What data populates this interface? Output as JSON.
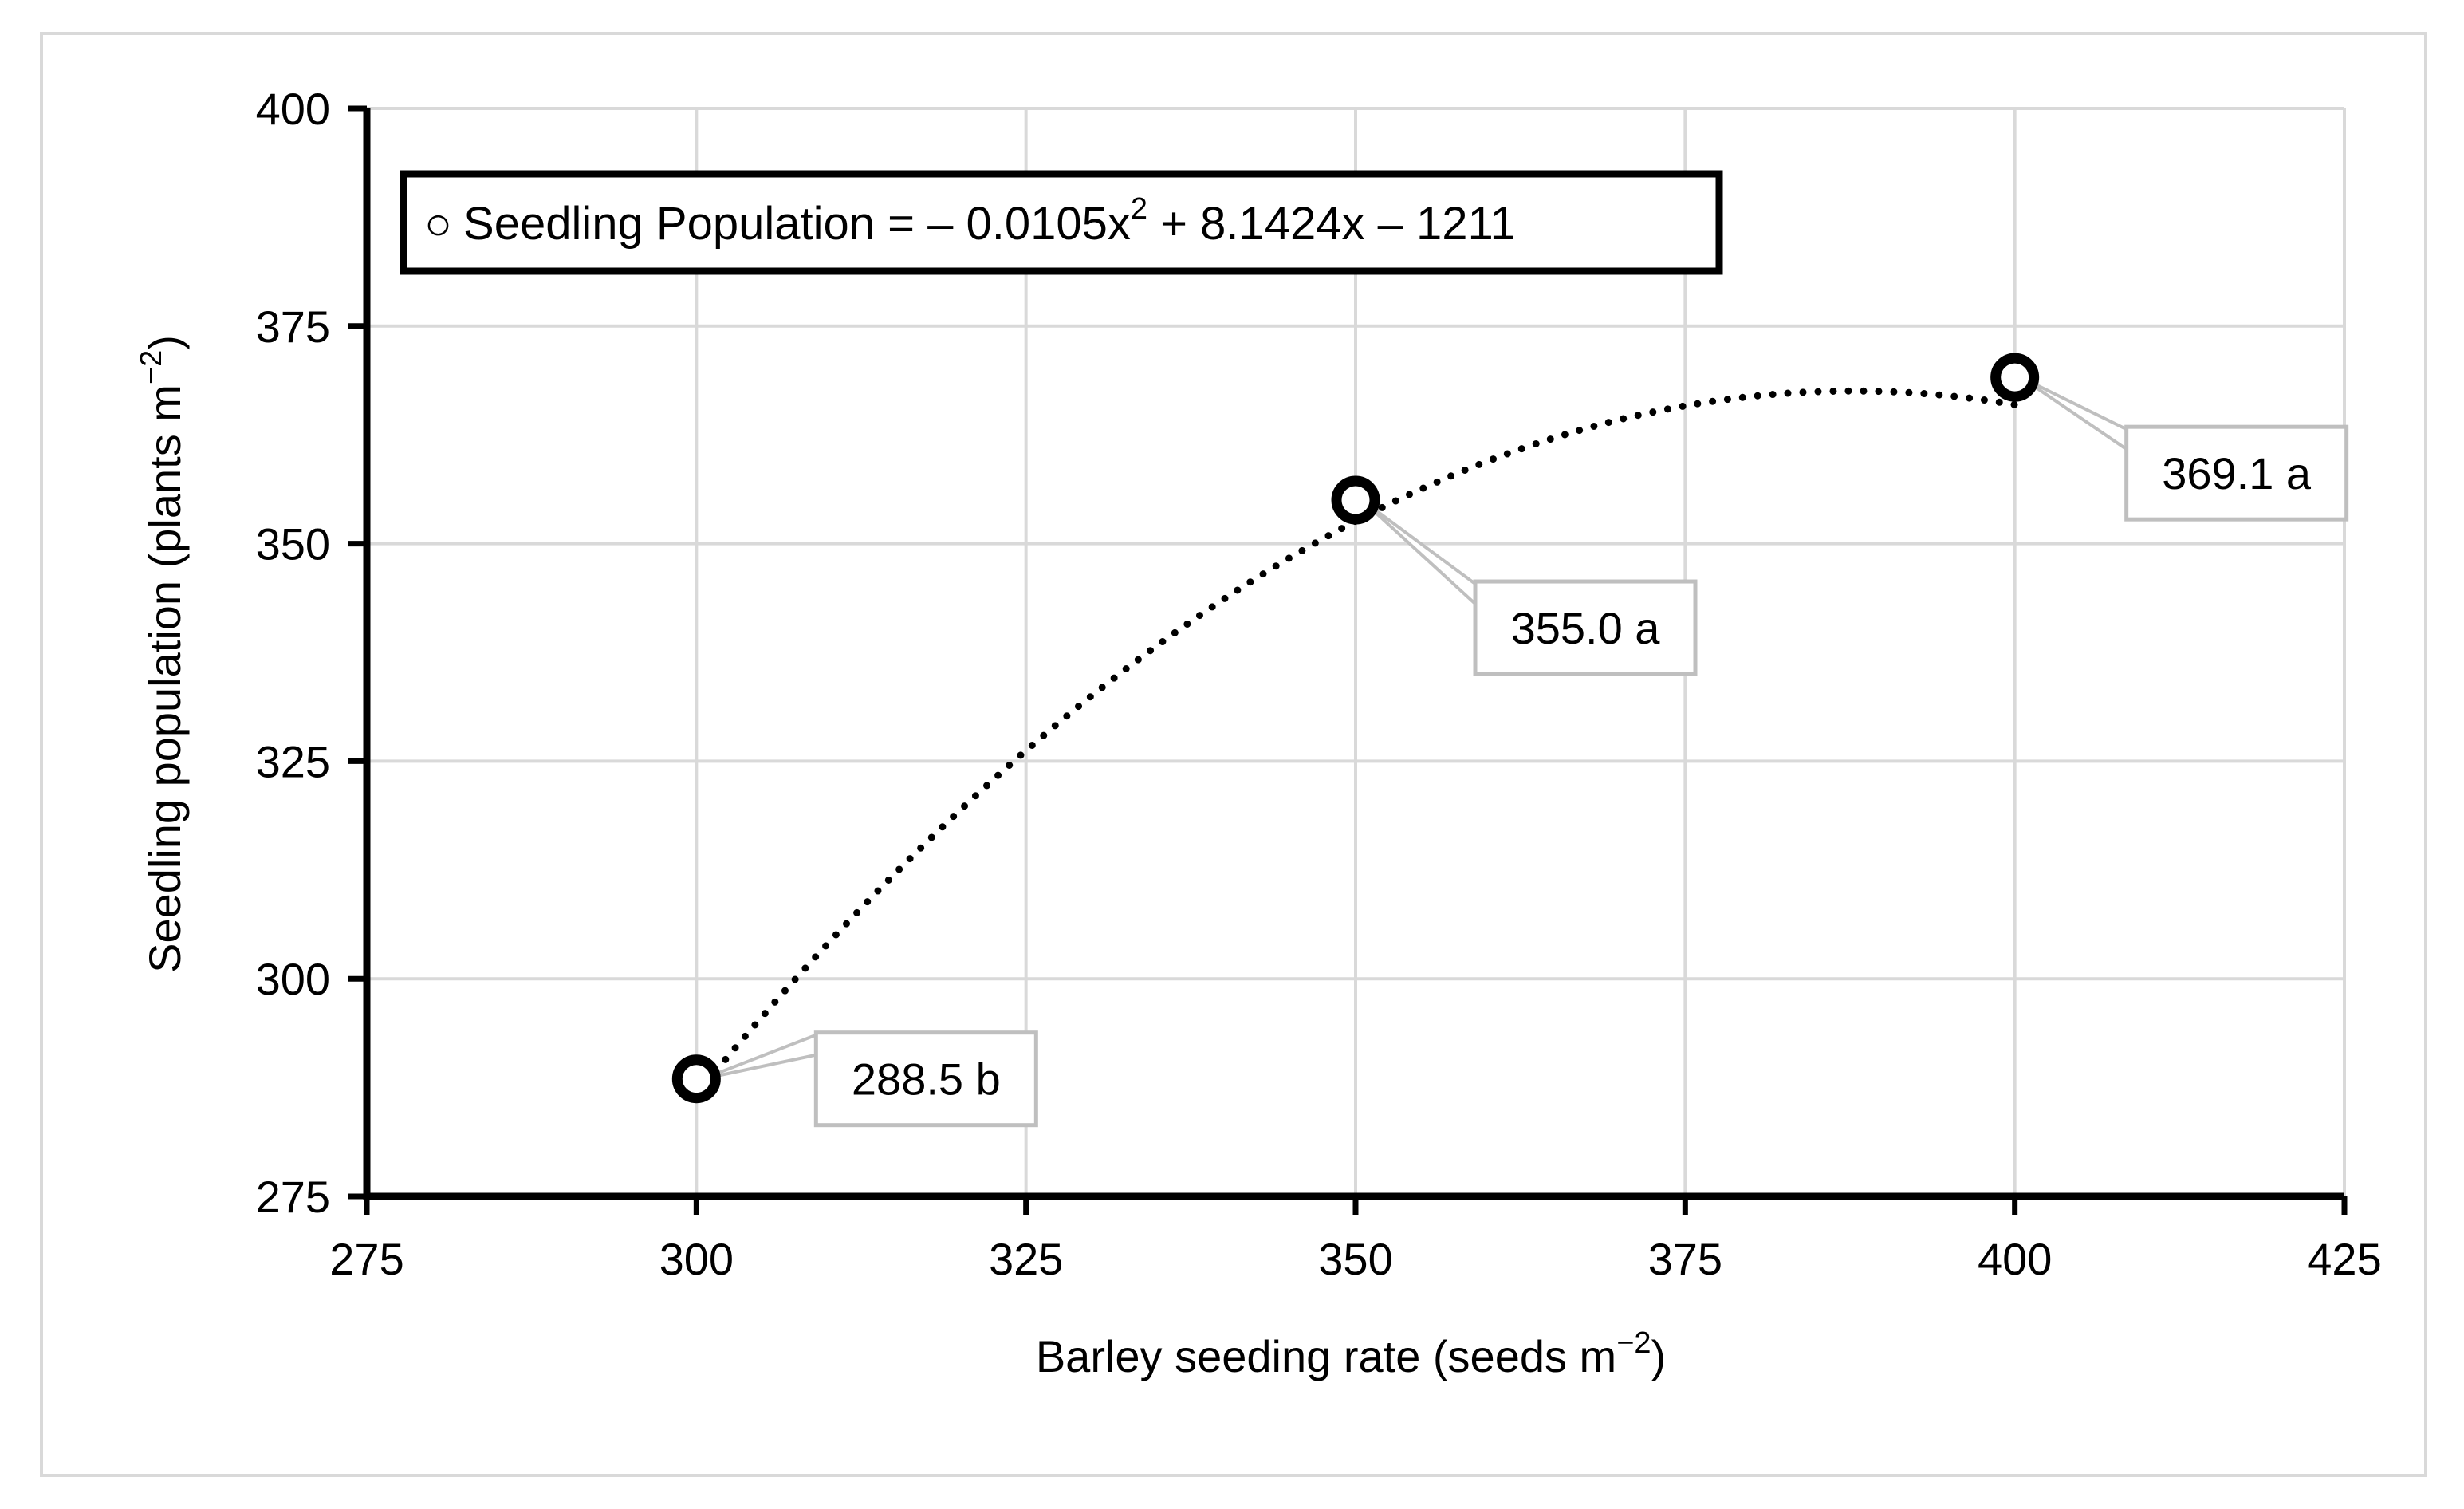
{
  "chart_data": {
    "type": "scatter",
    "xlabel": "Barley seeding rate (seeds m",
    "xlabel_sup": "−2",
    "xlabel_end": ")",
    "ylabel": "Seedling population (plants m",
    "ylabel_sup": "−2",
    "ylabel_end": ")",
    "xlim": [
      275,
      425
    ],
    "ylim": [
      275,
      400
    ],
    "xticks": [
      275,
      300,
      325,
      350,
      375,
      400,
      425
    ],
    "yticks": [
      275,
      300,
      325,
      350,
      375,
      400
    ],
    "grid": true,
    "legend": {
      "position": "top-left",
      "marker": "○",
      "text": "Seedling Population = – 0.0105x",
      "sup": "2",
      "text_end": " + 8.1424x – 1211"
    },
    "series": [
      {
        "name": "Seedling Population",
        "x": [
          300,
          350,
          400
        ],
        "y": [
          288.5,
          355.0,
          369.1
        ],
        "labels": [
          "288.5 b",
          "355.0 a",
          "369.1 a"
        ]
      }
    ],
    "trendline": {
      "type": "polynomial",
      "order": 2,
      "coefficients": [
        -0.0105,
        8.1424,
        -1211
      ],
      "style": "dotted",
      "x_range": [
        300,
        400
      ]
    }
  }
}
